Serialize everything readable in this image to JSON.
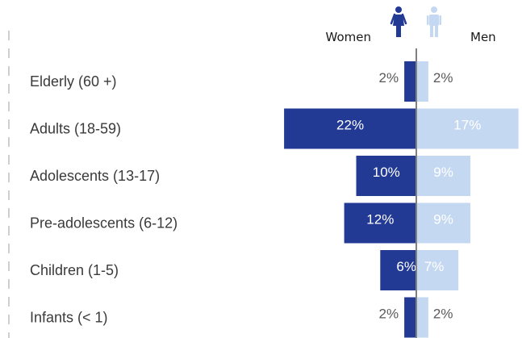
{
  "chart_data": {
    "type": "bar",
    "orientation": "horizontal-diverging",
    "categories": [
      "Elderly (60 +)",
      "Adults (18-59)",
      "Adolescents (13-17)",
      "Pre-adolescents (6-12)",
      "Children (1-5)",
      "Infants (< 1)"
    ],
    "series": [
      {
        "name": "Women",
        "values": [
          2,
          22,
          10,
          12,
          6,
          2
        ],
        "labels": [
          "2%",
          "22%",
          "10%",
          "12%",
          "6%",
          "2%"
        ],
        "color": "#233a94"
      },
      {
        "name": "Men",
        "values": [
          2,
          17,
          9,
          9,
          7,
          2
        ],
        "labels": [
          "2%",
          "17%",
          "9%",
          "9%",
          "7%",
          "2%"
        ],
        "color": "#c5d8f1"
      }
    ],
    "unit": "%",
    "xlim": [
      0,
      22
    ],
    "legend": {
      "position": "top-right",
      "icons": [
        "woman-icon",
        "man-icon"
      ]
    },
    "colors": {
      "women": "#233a94",
      "men": "#c5d8f1",
      "axis": "#808080",
      "label_dark": "#595959",
      "label_light": "#ffffff"
    }
  }
}
